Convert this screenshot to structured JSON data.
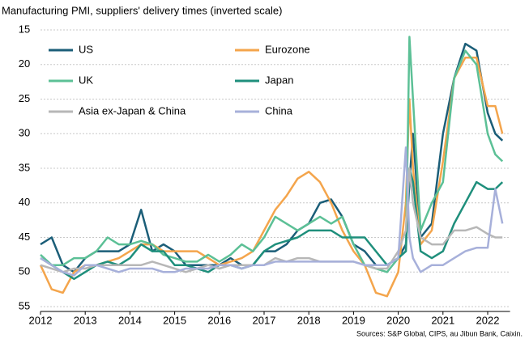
{
  "chart_data": {
    "type": "line",
    "title": "Manufacturing PMI, suppliers' delivery times (inverted scale)",
    "source": "Sources: S&P Global, CIPS, au Jibun Bank, Caixin.",
    "x": [
      2012,
      2012.25,
      2012.5,
      2012.75,
      2013,
      2013.25,
      2013.5,
      2013.75,
      2014,
      2014.25,
      2014.5,
      2014.75,
      2015,
      2015.25,
      2015.5,
      2015.75,
      2016,
      2016.25,
      2016.5,
      2016.75,
      2017,
      2017.25,
      2017.5,
      2017.75,
      2018,
      2018.25,
      2018.5,
      2018.75,
      2019,
      2019.25,
      2019.5,
      2019.75,
      2020,
      2020.17,
      2020.25,
      2020.33,
      2020.5,
      2020.75,
      2021,
      2021.25,
      2021.5,
      2021.75,
      2022,
      2022.17,
      2022.33
    ],
    "xlim": [
      2012,
      2022.5
    ],
    "xticks": [
      2012,
      2013,
      2014,
      2015,
      2016,
      2017,
      2018,
      2019,
      2020,
      2021,
      2022
    ],
    "ylim": [
      15,
      55
    ],
    "yticks": [
      15,
      20,
      25,
      30,
      35,
      40,
      45,
      50,
      55
    ],
    "y_inverted": true,
    "grid": true,
    "legend": "upper left",
    "series": [
      {
        "name": "US",
        "color": "#1b5e78",
        "values": [
          46,
          45,
          49,
          50,
          48,
          47,
          47,
          47,
          46,
          41,
          47,
          46,
          47,
          49,
          49,
          49,
          49,
          48,
          49,
          49,
          47,
          47,
          46,
          44,
          43,
          40,
          39.5,
          42,
          46,
          47,
          49,
          49,
          48,
          46,
          37,
          30,
          45,
          43,
          30,
          22,
          17,
          18,
          27,
          30,
          31
        ]
      },
      {
        "name": "Eurozone",
        "color": "#f4a54c",
        "values": [
          49,
          52.5,
          53,
          50,
          49,
          49,
          48.5,
          48,
          47,
          46,
          46,
          47,
          47,
          47,
          47,
          48,
          49,
          48.5,
          48,
          47,
          44,
          41,
          39,
          36.5,
          35.5,
          37,
          40,
          44,
          47,
          49,
          53,
          53.5,
          50,
          40,
          25,
          35,
          46,
          44,
          34,
          22,
          19,
          19,
          26,
          26,
          30
        ]
      },
      {
        "name": "UK",
        "color": "#5cc096",
        "values": [
          47.5,
          49,
          49,
          48,
          48,
          47,
          45,
          46,
          46,
          45.5,
          46,
          47.5,
          48,
          48.5,
          48.5,
          47.5,
          48.5,
          47.5,
          46,
          47,
          45,
          42,
          43,
          44,
          43,
          42,
          43,
          42,
          46,
          49,
          49.5,
          50,
          48,
          47,
          16,
          25,
          44,
          40,
          37,
          22,
          18,
          20,
          30,
          33,
          34
        ]
      },
      {
        "name": "Japan",
        "color": "#1f8f7c",
        "values": [
          48,
          49,
          50,
          51,
          50,
          49,
          48.5,
          49,
          48,
          46,
          47,
          47,
          49,
          49,
          49.5,
          50,
          49,
          49,
          49.5,
          49,
          47,
          46,
          45.5,
          45,
          44,
          44,
          44,
          45,
          45,
          45,
          47,
          49,
          48,
          47,
          35,
          37,
          47,
          48,
          47,
          43,
          40,
          37,
          38,
          38,
          37
        ]
      },
      {
        "name": "Asia ex-Japan & China",
        "color": "#b7b7b7",
        "values": [
          49,
          49.5,
          50,
          49.5,
          49.5,
          49,
          49,
          49,
          49,
          49,
          48.5,
          49,
          49.5,
          50,
          49.5,
          49,
          49.5,
          49,
          49,
          49,
          49,
          48,
          48.5,
          48,
          48,
          48.5,
          48.5,
          48.5,
          48.5,
          49,
          49.5,
          49.5,
          47,
          44,
          35,
          40,
          45,
          46,
          46,
          44,
          44,
          43.5,
          44.5,
          45,
          45
        ]
      },
      {
        "name": "China",
        "color": "#a7b0da",
        "values": [
          48,
          49,
          50,
          50.5,
          49,
          49,
          49.5,
          50,
          49.5,
          49.5,
          49.5,
          50,
          50,
          49.5,
          49.5,
          49.5,
          49,
          49,
          49.5,
          49,
          49,
          48.5,
          48.5,
          48.5,
          48.5,
          48.5,
          48.5,
          48.5,
          48.5,
          49,
          49,
          49,
          48,
          32,
          45,
          48,
          50,
          49,
          49,
          48,
          47,
          46.5,
          46.5,
          38,
          43
        ]
      }
    ]
  }
}
